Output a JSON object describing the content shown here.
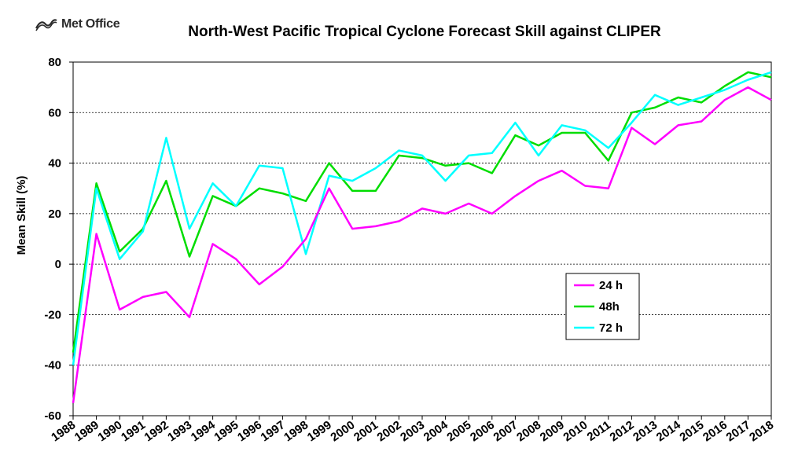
{
  "logo": {
    "text": "Met Office",
    "icon": "met-office-logo-icon"
  },
  "chart_data": {
    "type": "line",
    "title": "North-West Pacific Tropical Cyclone Forecast Skill against CLIPER",
    "xlabel": "",
    "ylabel": "Mean Skill (%)",
    "ylim": [
      -60,
      80
    ],
    "yticks": [
      -60,
      -40,
      -20,
      0,
      20,
      40,
      60,
      80
    ],
    "grid": "horizontal dotted",
    "legend_position": "lower-right",
    "categories": [
      "1988",
      "1989",
      "1990",
      "1991",
      "1992",
      "1993",
      "1994",
      "1995",
      "1996",
      "1997",
      "1998",
      "1999",
      "2000",
      "2001",
      "2002",
      "2003",
      "2004",
      "2005",
      "2006",
      "2007",
      "2008",
      "2009",
      "2010",
      "2011",
      "2012",
      "2013",
      "2014",
      "2015",
      "2016",
      "2017",
      "2018"
    ],
    "series": [
      {
        "name": "24 h",
        "color": "#ff00ff",
        "values": [
          -55,
          12,
          -18,
          -13,
          -11,
          -21,
          8,
          2,
          -8,
          -1,
          10,
          30,
          14,
          15,
          17,
          22,
          20,
          24,
          20,
          27,
          33,
          37,
          31,
          30,
          54,
          47.5,
          55,
          56.5,
          65,
          70,
          65
        ]
      },
      {
        "name": "48h",
        "color": "#00dd00",
        "values": [
          -35,
          32,
          5,
          14,
          33,
          3,
          27,
          23,
          30,
          28,
          25,
          40,
          29,
          29,
          43,
          42,
          39,
          40,
          36,
          51,
          47,
          52,
          52,
          41,
          60,
          62,
          66,
          64,
          70.5,
          76,
          74
        ]
      },
      {
        "name": "72 h",
        "color": "#00ffff",
        "values": [
          -40,
          30,
          2,
          13,
          50,
          14,
          32,
          23,
          39,
          38,
          4,
          35,
          33,
          38,
          45,
          43,
          33,
          43,
          44,
          56,
          43,
          55,
          53,
          46,
          56,
          67,
          63,
          66,
          69,
          73,
          76
        ]
      }
    ]
  }
}
